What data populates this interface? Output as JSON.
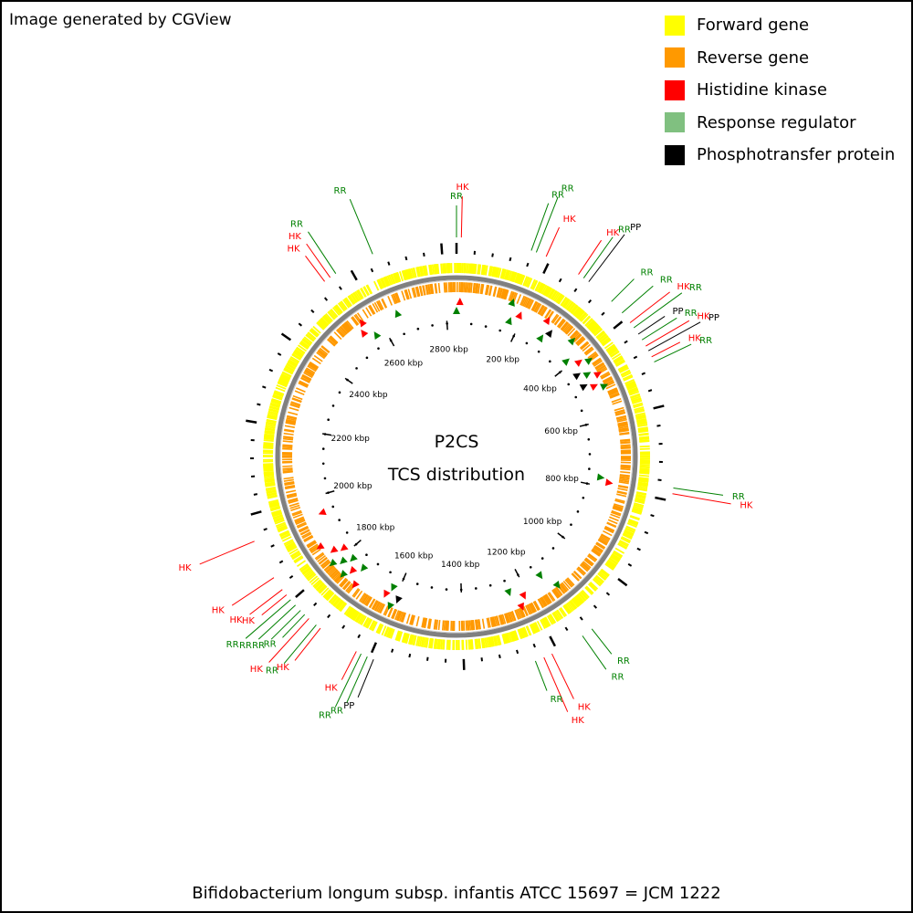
{
  "credit": "Image generated by CGView",
  "legend": [
    {
      "label": "Forward gene",
      "color": "#ffff00"
    },
    {
      "label": "Reverse gene",
      "color": "#ff9900"
    },
    {
      "label": "Histidine kinase",
      "color": "#ff0000"
    },
    {
      "label": "Response regulator",
      "color": "#80c080"
    },
    {
      "label": "Phosphotransfer protein",
      "color": "#000000"
    }
  ],
  "center_title": "P2CS",
  "center_subtitle": "TCS distribution",
  "footer": "Bifidobacterium longum subsp. infantis ATCC 15697 = JCM 1222",
  "genome_kbp": 2832,
  "ruler_labels": [
    "200 kbp",
    "400 kbp",
    "600 kbp",
    "800 kbp",
    "1000 kbp",
    "1200 kbp",
    "1400 kbp",
    "1600 kbp",
    "1800 kbp",
    "2000 kbp",
    "2200 kbp",
    "2400 kbp",
    "2600 kbp",
    "2800 kbp"
  ],
  "colors": {
    "hk": "#ff0000",
    "rr": "#008000",
    "pp": "#000000",
    "forward": "#ffff00",
    "reverse": "#ff9900",
    "backbone": "#808080"
  },
  "features": [
    {
      "label": "RR",
      "kind": "rr",
      "kbp": 0
    },
    {
      "label": "HK",
      "kind": "hk",
      "kbp": 10
    },
    {
      "label": "RR",
      "kind": "rr",
      "kbp": 157
    },
    {
      "label": "RR",
      "kind": "rr",
      "kbp": 168
    },
    {
      "label": "HK",
      "kind": "hk",
      "kbp": 190
    },
    {
      "label": "HK",
      "kind": "hk",
      "kbp": 266
    },
    {
      "label": "RR",
      "kind": "rr",
      "kbp": 279
    },
    {
      "label": "PP",
      "kind": "pp",
      "kbp": 292
    },
    {
      "label": "RR",
      "kind": "rr",
      "kbp": 354
    },
    {
      "label": "RR",
      "kind": "rr",
      "kbp": 386
    },
    {
      "label": "HK",
      "kind": "hk",
      "kbp": 412
    },
    {
      "label": "RR",
      "kind": "rr",
      "kbp": 425
    },
    {
      "label": "PP",
      "kind": "pp",
      "kbp": 441
    },
    {
      "label": "RR",
      "kind": "rr",
      "kbp": 455
    },
    {
      "label": "HK",
      "kind": "hk",
      "kbp": 470
    },
    {
      "label": "PP",
      "kind": "pp",
      "kbp": 481
    },
    {
      "label": "HK",
      "kind": "hk",
      "kbp": 495
    },
    {
      "label": "RR",
      "kind": "rr",
      "kbp": 507
    },
    {
      "label": "RR",
      "kind": "rr",
      "kbp": 773
    },
    {
      "label": "HK",
      "kind": "hk",
      "kbp": 785
    },
    {
      "label": "RR",
      "kind": "rr",
      "kbp": 1116
    },
    {
      "label": "RR",
      "kind": "rr",
      "kbp": 1140
    },
    {
      "label": "HK",
      "kind": "hk",
      "kbp": 1213
    },
    {
      "label": "HK",
      "kind": "hk",
      "kbp": 1231
    },
    {
      "label": "RR",
      "kind": "rr",
      "kbp": 1250
    },
    {
      "label": "PP",
      "kind": "pp",
      "kbp": 1591
    },
    {
      "label": "RR",
      "kind": "rr",
      "kbp": 1605
    },
    {
      "label": "RR",
      "kind": "rr",
      "kbp": 1619
    },
    {
      "label": "HK",
      "kind": "hk",
      "kbp": 1630
    },
    {
      "label": "HK",
      "kind": "hk",
      "kbp": 1718
    },
    {
      "label": "RR",
      "kind": "rr",
      "kbp": 1729
    },
    {
      "label": "HK",
      "kind": "hk",
      "kbp": 1749
    },
    {
      "label": "RR",
      "kind": "rr",
      "kbp": 1761
    },
    {
      "label": "RR",
      "kind": "rr",
      "kbp": 1773
    },
    {
      "label": "RR",
      "kind": "rr",
      "kbp": 1788
    },
    {
      "label": "RR",
      "kind": "rr",
      "kbp": 1803
    },
    {
      "label": "HK",
      "kind": "hk",
      "kbp": 1816
    },
    {
      "label": "HK",
      "kind": "hk",
      "kbp": 1830
    },
    {
      "label": "HK",
      "kind": "hk",
      "kbp": 1860
    },
    {
      "label": "HK",
      "kind": "hk",
      "kbp": 1945
    },
    {
      "label": "HK",
      "kind": "hk",
      "kbp": 2541
    },
    {
      "label": "HK",
      "kind": "hk",
      "kbp": 2555
    },
    {
      "label": "RR",
      "kind": "rr",
      "kbp": 2569
    },
    {
      "label": "RR",
      "kind": "rr",
      "kbp": 2655
    }
  ]
}
